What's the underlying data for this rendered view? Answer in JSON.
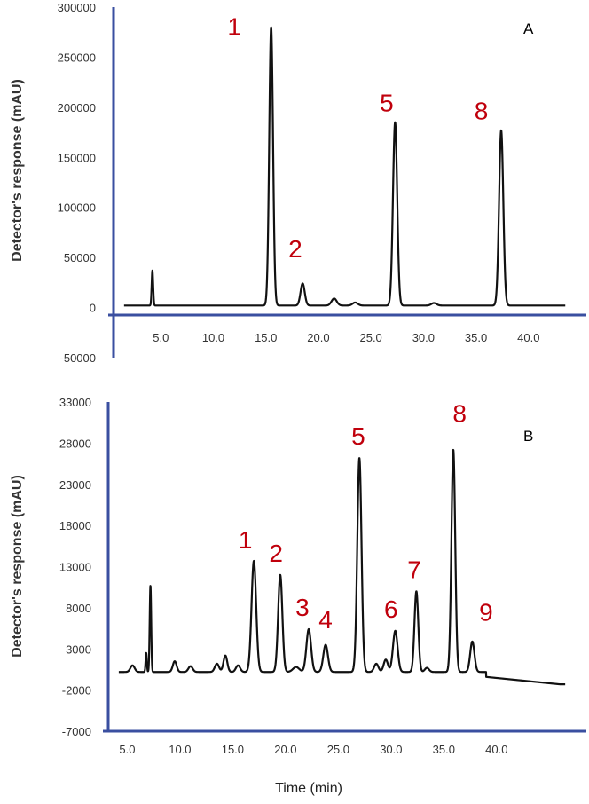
{
  "colors": {
    "axis": "#3a4fa0",
    "trace": "#111111",
    "peak_label": "#c0000c"
  },
  "xlabel": "Time (min)",
  "chart_data": [
    {
      "type": "line",
      "panel": "A",
      "ylabel": "Detector's response (mAU)",
      "xlim": [
        0.5,
        45
      ],
      "ylim": [
        -50000,
        300000
      ],
      "yticks": [
        "300000",
        "250000",
        "200000",
        "150000",
        "100000",
        "50000",
        "0",
        "-50000"
      ],
      "ytick_values": [
        300000,
        250000,
        200000,
        150000,
        100000,
        50000,
        0,
        -50000
      ],
      "xticks": [
        "5.0",
        "10.0",
        "15.0",
        "20.0",
        "25.0",
        "30.0",
        "35.0",
        "40.0"
      ],
      "xtick_values": [
        5,
        10,
        15,
        20,
        25,
        30,
        35,
        40
      ],
      "baseline": 2000,
      "peaks": [
        {
          "label": "",
          "t": 4.2,
          "h": 35000,
          "w": 0.07
        },
        {
          "label": "1",
          "t": 15.5,
          "h": 278000,
          "w": 0.18
        },
        {
          "label": "2",
          "t": 18.5,
          "h": 22000,
          "w": 0.2
        },
        {
          "label": "",
          "t": 21.5,
          "h": 7000,
          "w": 0.25
        },
        {
          "label": "",
          "t": 23.5,
          "h": 3000,
          "w": 0.25
        },
        {
          "label": "5",
          "t": 27.3,
          "h": 183000,
          "w": 0.2
        },
        {
          "label": "",
          "t": 31.0,
          "h": 2500,
          "w": 0.25
        },
        {
          "label": "8",
          "t": 37.4,
          "h": 175000,
          "w": 0.2
        }
      ],
      "peak_labels": [
        {
          "text": "1",
          "t": 12.0,
          "y": 272000
        },
        {
          "text": "2",
          "t": 17.8,
          "y": 50000
        },
        {
          "text": "5",
          "t": 26.5,
          "y": 196000
        },
        {
          "text": "8",
          "t": 35.5,
          "y": 188000
        }
      ]
    },
    {
      "type": "line",
      "panel": "B",
      "ylabel": "Detector's response (mAU)",
      "xlim": [
        3.2,
        48
      ],
      "ylim": [
        -7000,
        33000
      ],
      "yticks": [
        "33000",
        "28000",
        "23000",
        "18000",
        "13000",
        "8000",
        "3000",
        "-2000",
        "-7000"
      ],
      "ytick_values": [
        33000,
        28000,
        23000,
        18000,
        13000,
        8000,
        3000,
        -2000,
        -7000
      ],
      "xticks": [
        "5.0",
        "10.0",
        "15.0",
        "20.0",
        "25.0",
        "30.0",
        "35.0",
        "40.0"
      ],
      "xtick_values": [
        5,
        10,
        15,
        20,
        25,
        30,
        35,
        40
      ],
      "baseline": 200,
      "peaks": [
        {
          "label": "",
          "t": 6.8,
          "h": 2300,
          "w": 0.06
        },
        {
          "label": "",
          "t": 7.2,
          "h": 10500,
          "w": 0.07
        },
        {
          "label": "",
          "t": 5.5,
          "h": 800,
          "w": 0.2
        },
        {
          "label": "",
          "t": 9.5,
          "h": 1300,
          "w": 0.18
        },
        {
          "label": "",
          "t": 11.0,
          "h": 700,
          "w": 0.2
        },
        {
          "label": "",
          "t": 13.5,
          "h": 1000,
          "w": 0.2
        },
        {
          "label": "",
          "t": 14.3,
          "h": 2000,
          "w": 0.18
        },
        {
          "label": "",
          "t": 15.5,
          "h": 800,
          "w": 0.2
        },
        {
          "label": "1",
          "t": 17.0,
          "h": 13500,
          "w": 0.22
        },
        {
          "label": "2",
          "t": 19.5,
          "h": 11800,
          "w": 0.2
        },
        {
          "label": "",
          "t": 21.0,
          "h": 600,
          "w": 0.3
        },
        {
          "label": "3",
          "t": 22.2,
          "h": 5200,
          "w": 0.22
        },
        {
          "label": "4",
          "t": 23.8,
          "h": 3300,
          "w": 0.22
        },
        {
          "label": "5",
          "t": 27.0,
          "h": 26000,
          "w": 0.2
        },
        {
          "label": "",
          "t": 28.6,
          "h": 1000,
          "w": 0.2
        },
        {
          "label": "",
          "t": 29.5,
          "h": 1500,
          "w": 0.2
        },
        {
          "label": "6",
          "t": 30.4,
          "h": 5000,
          "w": 0.22
        },
        {
          "label": "7",
          "t": 32.4,
          "h": 9800,
          "w": 0.18
        },
        {
          "label": "",
          "t": 33.4,
          "h": 500,
          "w": 0.2
        },
        {
          "label": "8",
          "t": 35.9,
          "h": 27000,
          "w": 0.18
        },
        {
          "label": "9",
          "t": 37.7,
          "h": 3700,
          "w": 0.2
        }
      ],
      "drift": [
        {
          "t": 39,
          "y": -400
        },
        {
          "t": 46,
          "y": -1300
        }
      ],
      "peak_labels": [
        {
          "text": "1",
          "t": 16.2,
          "y": 15200
        },
        {
          "text": "2",
          "t": 19.1,
          "y": 13600
        },
        {
          "text": "3",
          "t": 21.6,
          "y": 7000
        },
        {
          "text": "4",
          "t": 23.8,
          "y": 5500
        },
        {
          "text": "5",
          "t": 26.9,
          "y": 27800
        },
        {
          "text": "6",
          "t": 30.0,
          "y": 6800
        },
        {
          "text": "7",
          "t": 32.2,
          "y": 11600
        },
        {
          "text": "8",
          "t": 36.5,
          "y": 30600
        },
        {
          "text": "9",
          "t": 39.0,
          "y": 6400
        }
      ]
    }
  ]
}
